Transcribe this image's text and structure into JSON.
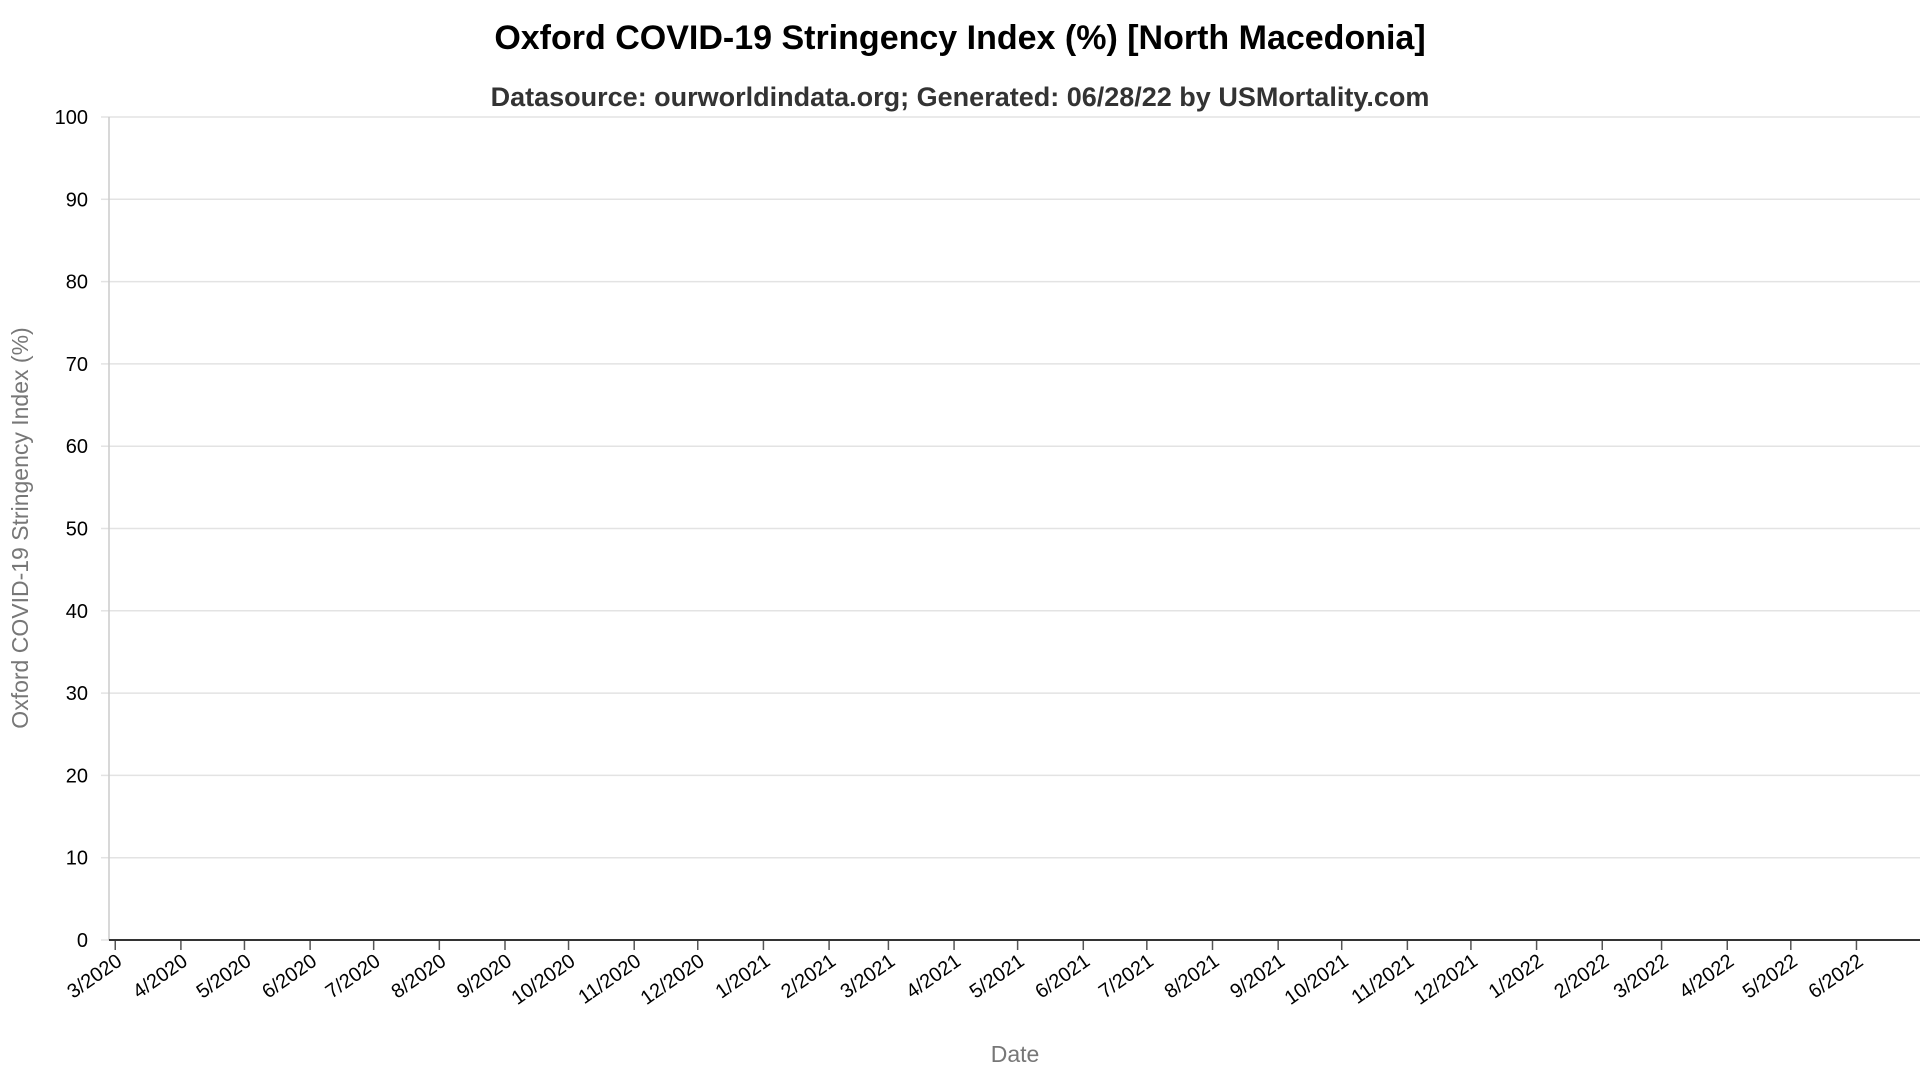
{
  "chart_data": {
    "type": "line",
    "title": "Oxford COVID-19 Stringency Index (%) [North Macedonia]",
    "subtitle": "Datasource: ourworldindata.org; Generated: 06/28/22 by USMortality.com",
    "xlabel": "Date",
    "ylabel": "Oxford COVID-19 Stringency Index (%)",
    "ylim": [
      0,
      100
    ],
    "yticks": [
      0,
      10,
      20,
      30,
      40,
      50,
      60,
      70,
      80,
      90,
      100
    ],
    "xlim": [
      "2020-02-28",
      "2022-07-01"
    ],
    "xticks": [
      {
        "date": "2020-03-01",
        "label": "3/2020"
      },
      {
        "date": "2020-04-01",
        "label": "4/2020"
      },
      {
        "date": "2020-05-01",
        "label": "5/2020"
      },
      {
        "date": "2020-06-01",
        "label": "6/2020"
      },
      {
        "date": "2020-07-01",
        "label": "7/2020"
      },
      {
        "date": "2020-08-01",
        "label": "8/2020"
      },
      {
        "date": "2020-09-01",
        "label": "9/2020"
      },
      {
        "date": "2020-10-01",
        "label": "10/2020"
      },
      {
        "date": "2020-11-01",
        "label": "11/2020"
      },
      {
        "date": "2020-12-01",
        "label": "12/2020"
      },
      {
        "date": "2021-01-01",
        "label": "1/2021"
      },
      {
        "date": "2021-02-01",
        "label": "2/2021"
      },
      {
        "date": "2021-03-01",
        "label": "3/2021"
      },
      {
        "date": "2021-04-01",
        "label": "4/2021"
      },
      {
        "date": "2021-05-01",
        "label": "5/2021"
      },
      {
        "date": "2021-06-01",
        "label": "6/2021"
      },
      {
        "date": "2021-07-01",
        "label": "7/2021"
      },
      {
        "date": "2021-08-01",
        "label": "8/2021"
      },
      {
        "date": "2021-09-01",
        "label": "9/2021"
      },
      {
        "date": "2021-10-01",
        "label": "10/2021"
      },
      {
        "date": "2021-11-01",
        "label": "11/2021"
      },
      {
        "date": "2021-12-01",
        "label": "12/2021"
      },
      {
        "date": "2022-01-01",
        "label": "1/2022"
      },
      {
        "date": "2022-02-01",
        "label": "2/2022"
      },
      {
        "date": "2022-03-01",
        "label": "3/2022"
      },
      {
        "date": "2022-04-01",
        "label": "4/2022"
      },
      {
        "date": "2022-05-01",
        "label": "5/2022"
      },
      {
        "date": "2022-06-01",
        "label": "6/2022"
      }
    ],
    "series": [],
    "grid": true,
    "legend": "none",
    "colors": {
      "grid": "#e3e3e3",
      "x_axis": "#333333",
      "y_axis": "#cccccc",
      "title": "#000000",
      "subtitle": "#333333",
      "axis_title": "#777777",
      "tick_label": "#000000"
    }
  }
}
